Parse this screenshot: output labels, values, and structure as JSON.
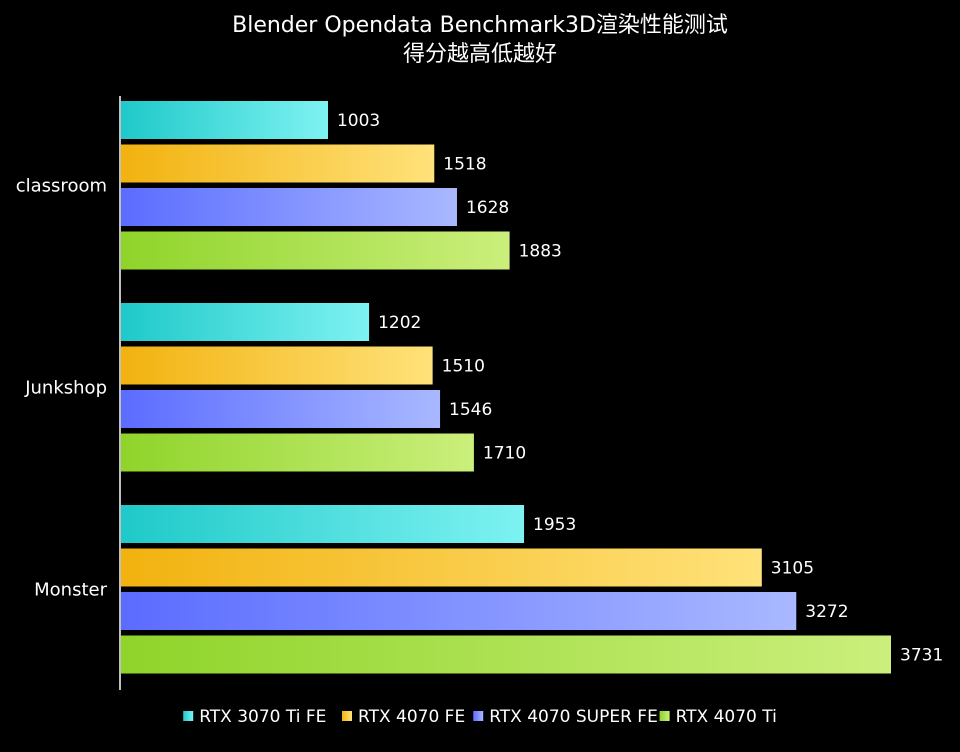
{
  "chart_data": {
    "type": "bar",
    "orientation": "horizontal",
    "title": "Blender Opendata Benchmark3D渲染性能测试",
    "subtitle": "得分越高低越好",
    "categories": [
      "classroom",
      "Junkshop",
      "Monster"
    ],
    "series": [
      {
        "name": "RTX 3070 Ti FE",
        "values": [
          1003,
          1202,
          1953
        ],
        "color_from": "#1fc9c9",
        "color_to": "#7ef2f2"
      },
      {
        "name": "RTX 4070 FE",
        "values": [
          1518,
          1510,
          3105
        ],
        "color_from": "#f2b20f",
        "color_to": "#ffe27a"
      },
      {
        "name": "RTX 4070 SUPER FE",
        "values": [
          1628,
          1546,
          3272
        ],
        "color_from": "#5b6cff",
        "color_to": "#a9b8ff"
      },
      {
        "name": "RTX 4070 Ti",
        "values": [
          1883,
          1710,
          3731
        ],
        "color_from": "#8fd42a",
        "color_to": "#cbef7c"
      }
    ],
    "xlim": [
      0,
      3731
    ],
    "grid": false,
    "legend_position": "bottom",
    "background": "#000000",
    "text_color": "#ffffff",
    "axis_color": "#ffffff"
  }
}
